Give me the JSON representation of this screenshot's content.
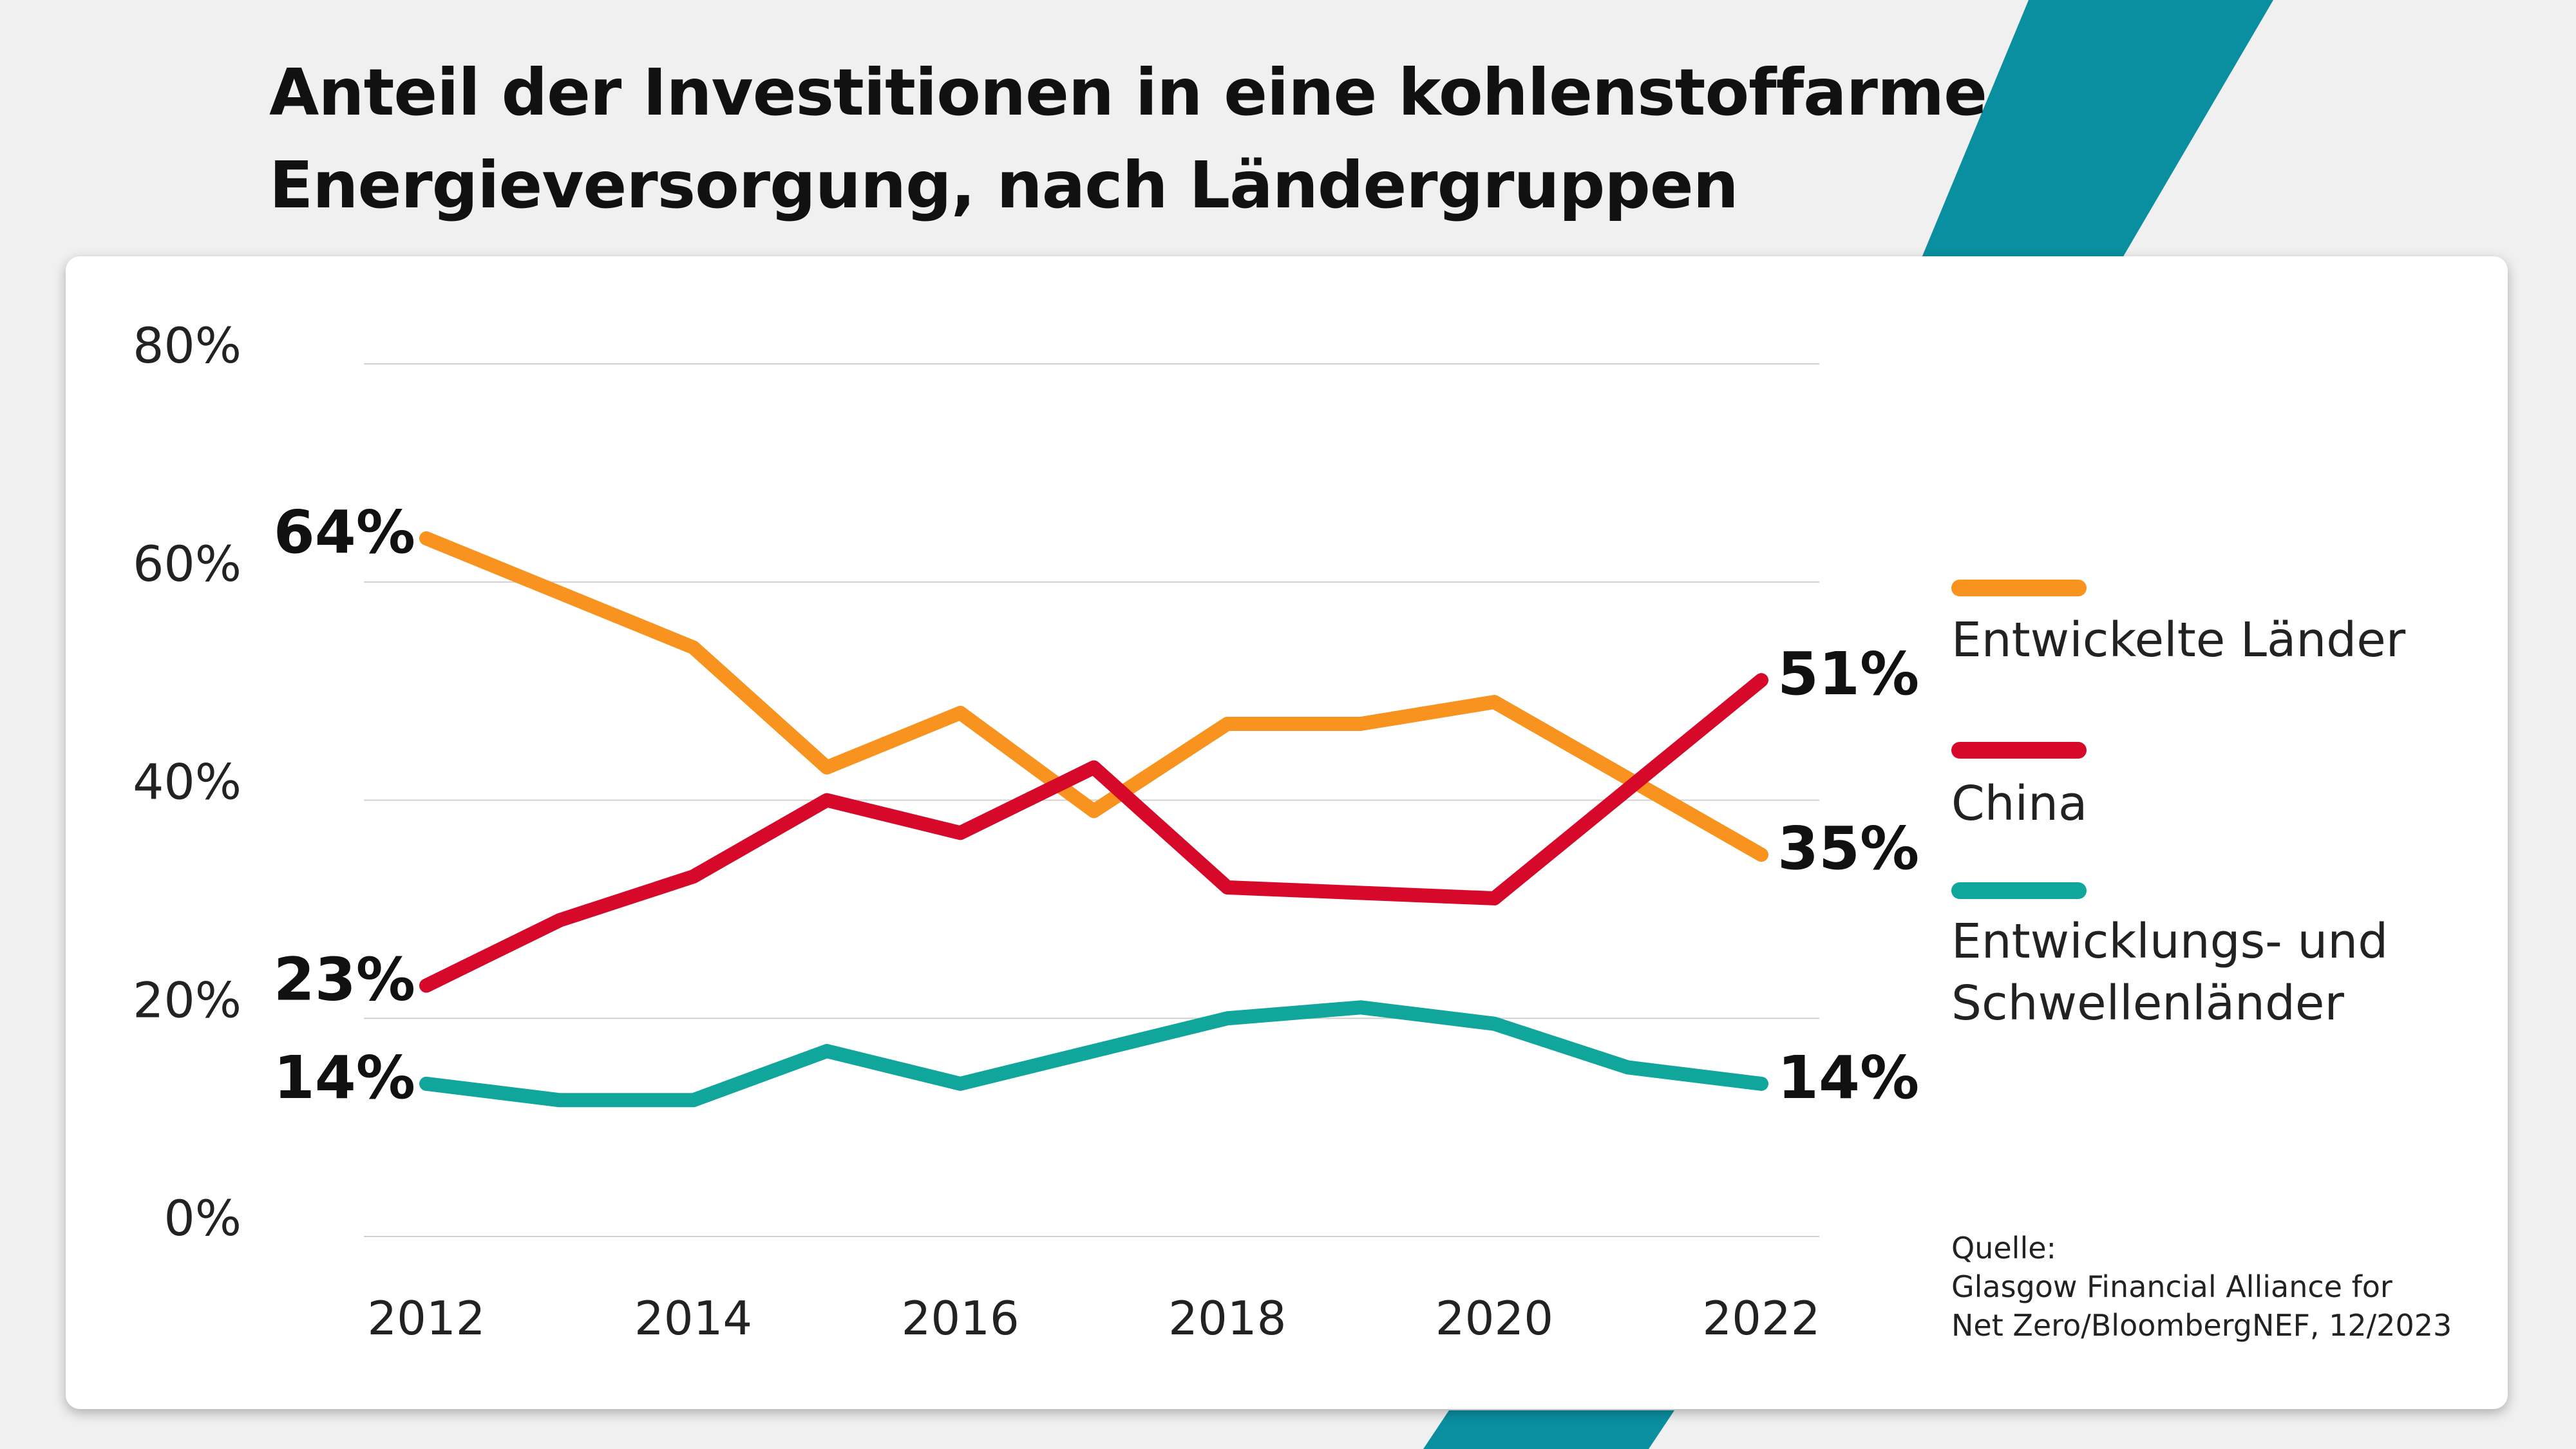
{
  "title": "Anteil der Investitionen in eine kohlenstoffarme Energieversorgung, nach Ländergruppen",
  "colors": {
    "background": "#f0f0f0",
    "accent": "#0a8fa0",
    "card": "#ffffff",
    "grid": "#d0d0d0"
  },
  "chart_data": {
    "type": "line",
    "title": "Anteil der Investitionen in eine kohlenstoffarme Energieversorgung, nach Ländergruppen",
    "x": [
      2012,
      2013,
      2014,
      2015,
      2016,
      2017,
      2018,
      2019,
      2020,
      2021,
      2022
    ],
    "x_tick_labels": [
      "2012",
      "2014",
      "2016",
      "2018",
      "2020",
      "2022"
    ],
    "y_tick_labels": [
      "0%",
      "20%",
      "40%",
      "60%",
      "80%"
    ],
    "ylim": [
      0,
      80
    ],
    "grid": true,
    "legend_position": "right",
    "series": [
      {
        "name": "Entwickelte Länder",
        "color": "#f7931e",
        "values": [
          64,
          59,
          54,
          43,
          48,
          39,
          47,
          47,
          49,
          42,
          35
        ],
        "start_label": "64%",
        "end_label": "35%"
      },
      {
        "name": "China",
        "color": "#d7092a",
        "values": [
          23,
          29,
          33,
          40,
          37,
          43,
          32,
          31.5,
          31,
          41,
          51
        ],
        "start_label": "23%",
        "end_label": "51%"
      },
      {
        "name": "Entwicklungs- und Schwellenländer",
        "color": "#10a69b",
        "values": [
          14,
          12.5,
          12.5,
          17,
          14,
          17,
          20,
          21,
          19.5,
          15.5,
          14
        ],
        "start_label": "14%",
        "end_label": "14%"
      }
    ]
  },
  "source": {
    "label": "Quelle:",
    "line1": "Glasgow Financial Alliance for",
    "line2": "Net Zero/BloombergNEF, 12/2023"
  }
}
